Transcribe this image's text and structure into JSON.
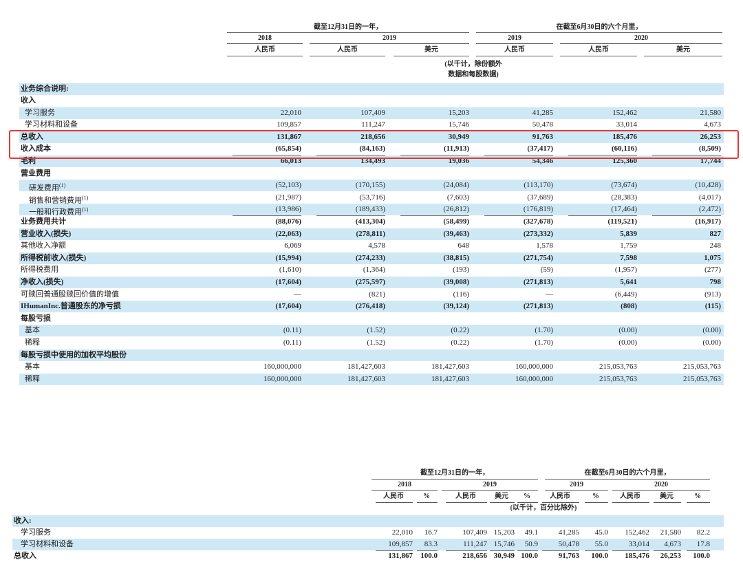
{
  "table1": {
    "header": {
      "period_year": "截至12月31日的一年，",
      "period_half": "在截至6月30日的六个月里，",
      "years": [
        "2018",
        "2019",
        "2019",
        "2020"
      ],
      "currencies": [
        "人民币",
        "人民币",
        "美元",
        "人民币",
        "人民币",
        "美元"
      ],
      "unit_note": [
        "(以千计，除份额外",
        "数据和每股数据)"
      ]
    },
    "section_title": "业务综合说明:",
    "rows": [
      {
        "label": "收入",
        "values": [
          "",
          "",
          "",
          "",
          "",
          ""
        ],
        "bold": true,
        "indent": 0
      },
      {
        "label": "学习服务",
        "values": [
          "22,010",
          "107,409",
          "15,203",
          "41,285",
          "152,462",
          "21,580"
        ],
        "bold": false,
        "indent": 1
      },
      {
        "label": "学习材料和设备",
        "values": [
          "109,857",
          "111,247",
          "15,746",
          "50,478",
          "33,014",
          "4,673"
        ],
        "bold": false,
        "indent": 1
      },
      {
        "label": "总收入",
        "values": [
          "131,867",
          "218,656",
          "30,949",
          "91,763",
          "185,476",
          "26,253"
        ],
        "bold": true,
        "indent": 0
      },
      {
        "label": "收入成本",
        "values": [
          "(65,854)",
          "(84,163)",
          "(11,913)",
          "(37,417)",
          "(60,116)",
          "(8,509)"
        ],
        "bold": true,
        "indent": 0
      },
      {
        "label": "毛利",
        "values": [
          "66,013",
          "134,493",
          "19,036",
          "54,346",
          "125,360",
          "17,744"
        ],
        "bold": true,
        "indent": 0
      },
      {
        "label": "营业费用",
        "values": [
          "",
          "",
          "",
          "",
          "",
          ""
        ],
        "bold": true,
        "indent": 0
      },
      {
        "label": "研发费用",
        "sup": "(1)",
        "values": [
          "(52,103)",
          "(170,155)",
          "(24,084)",
          "(113,170)",
          "(73,674)",
          "(10,428)"
        ],
        "bold": false,
        "indent": 2
      },
      {
        "label": "销售和营销费用",
        "sup": "(1)",
        "values": [
          "(21,987)",
          "(53,716)",
          "(7,603)",
          "(37,689)",
          "(28,383)",
          "(4,017)"
        ],
        "bold": false,
        "indent": 2
      },
      {
        "label": "一般和行政费用",
        "sup": "(1)",
        "values": [
          "(13,986)",
          "(189,433)",
          "(26,812)",
          "(176,819)",
          "(17,464)",
          "(2,472)"
        ],
        "bold": false,
        "indent": 2
      },
      {
        "label": "业务费用共计",
        "values": [
          "(88,076)",
          "(413,304)",
          "(58,499)",
          "(327,678)",
          "(119,521)",
          "(16,917)"
        ],
        "bold": true,
        "indent": 0
      },
      {
        "label": "营业收入(损失)",
        "values": [
          "(22,063)",
          "(278,811)",
          "(39,463)",
          "(273,332)",
          "5,839",
          "827"
        ],
        "bold": true,
        "indent": 0
      },
      {
        "label": "其他收入净额",
        "values": [
          "6,069",
          "4,578",
          "648",
          "1,578",
          "1,759",
          "248"
        ],
        "bold": false,
        "indent": 0
      },
      {
        "label": "所得税前收入(损失)",
        "values": [
          "(15,994)",
          "(274,233)",
          "(38,815)",
          "(271,754)",
          "7,598",
          "1,075"
        ],
        "bold": true,
        "indent": 0
      },
      {
        "label": "所得税费用",
        "values": [
          "(1,610)",
          "(1,364)",
          "(193)",
          "(59)",
          "(1,957)",
          "(277)"
        ],
        "bold": false,
        "indent": 0
      },
      {
        "label": "净收入(损失)",
        "values": [
          "(17,604)",
          "(275,597)",
          "(39,008)",
          "(271,813)",
          "5,641",
          "798"
        ],
        "bold": true,
        "indent": 0
      },
      {
        "label": "可赎回普通股赎回价值的增值",
        "values": [
          "—",
          "(821)",
          "(116)",
          "—",
          "(6,449)",
          "(913)"
        ],
        "bold": false,
        "indent": 0
      },
      {
        "label": "IHumanInc.普通股东的净亏损",
        "values": [
          "(17,604)",
          "(276,418)",
          "(39,124)",
          "(271,813)",
          "(808)",
          "(115)"
        ],
        "bold": true,
        "indent": 0
      },
      {
        "label": "每股亏损",
        "values": [
          "",
          "",
          "",
          "",
          "",
          ""
        ],
        "bold": true,
        "indent": 0
      },
      {
        "label": "基本",
        "values": [
          "(0.11)",
          "(1.52)",
          "(0.22)",
          "(1.70)",
          "(0.00)",
          "(0.00)"
        ],
        "bold": false,
        "indent": 1
      },
      {
        "label": "稀释",
        "values": [
          "(0.11)",
          "(1.52)",
          "(0.22)",
          "(1.70)",
          "(0.00)",
          "(0.00)"
        ],
        "bold": false,
        "indent": 1
      },
      {
        "label": "每股亏损中使用的加权平均股份",
        "values": [
          "",
          "",
          "",
          "",
          "",
          ""
        ],
        "bold": true,
        "indent": 0
      },
      {
        "label": "基本",
        "values": [
          "160,000,000",
          "181,427,603",
          "181,427,603",
          "160,000,000",
          "215,053,763",
          "215,053,763"
        ],
        "bold": false,
        "indent": 1
      },
      {
        "label": "稀释",
        "values": [
          "160,000,000",
          "181,427,603",
          "181,427,603",
          "160,000,000",
          "215,053,763",
          "215,053,763"
        ],
        "bold": false,
        "indent": 1
      }
    ]
  },
  "table2": {
    "header": {
      "period_year": "截至12月31日的一年，",
      "period_half": "在截至6月30日的六个月里，",
      "years": [
        "2018",
        "2019",
        "2019",
        "2020"
      ],
      "columns": [
        "人民币",
        "%",
        "人民币",
        "美元",
        "%",
        "人民币",
        "%",
        "人民币",
        "美元",
        "%"
      ],
      "unit_note": "(以千计，百分比除外)"
    },
    "rows": [
      {
        "label": "收入:",
        "values": [
          "",
          "",
          "",
          "",
          "",
          "",
          "",
          "",
          "",
          ""
        ],
        "bold": true,
        "indent": 0
      },
      {
        "label": "学习服务",
        "values": [
          "22,010",
          "16.7",
          "107,409",
          "15,203",
          "49.1",
          "41,285",
          "45.0",
          "152,462",
          "21,580",
          "82.2"
        ],
        "bold": false,
        "indent": 1
      },
      {
        "label": "学习材料和设备",
        "values": [
          "109,857",
          "83.3",
          "111,247",
          "15,746",
          "50.9",
          "50,478",
          "55.0",
          "33,014",
          "4,673",
          "17.8"
        ],
        "bold": false,
        "indent": 1
      },
      {
        "label": "总收入",
        "values": [
          "131,867",
          "100.0",
          "218,656",
          "30,949",
          "100.0",
          "91,763",
          "100.0",
          "185,476",
          "26,253",
          "100.0"
        ],
        "bold": true,
        "indent": 0
      }
    ]
  },
  "colors": {
    "row_band": "#cfe8f6",
    "highlight_border": "#e23a35"
  }
}
